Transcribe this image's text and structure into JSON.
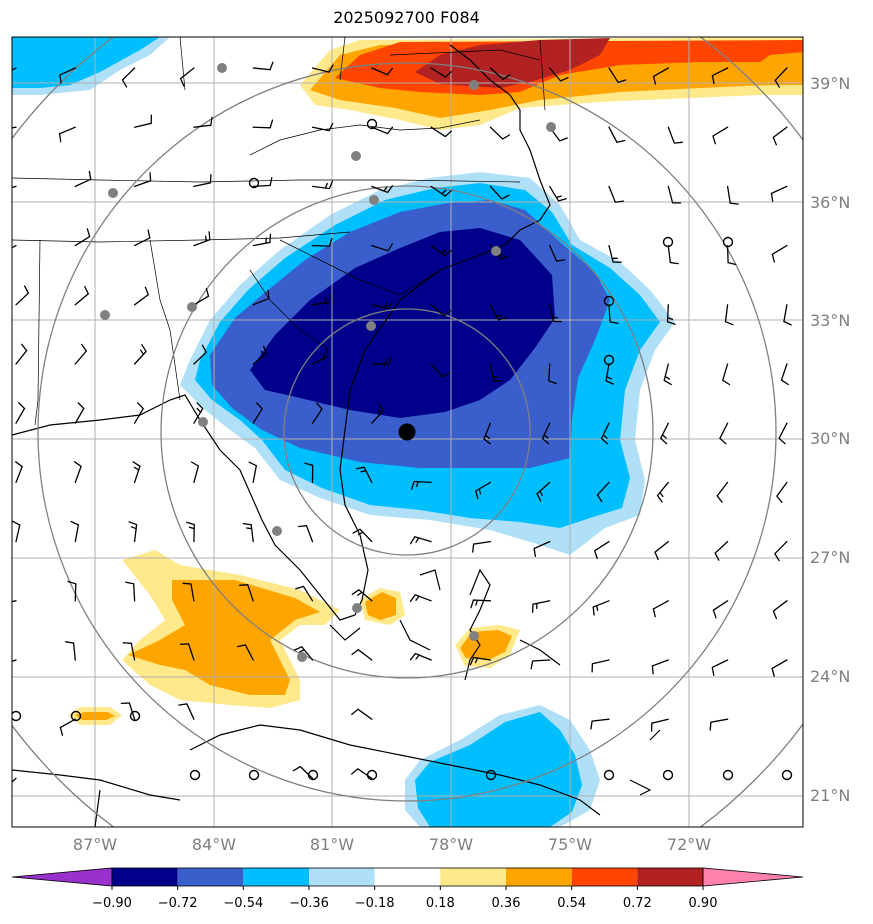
{
  "title": "2025092700 F084",
  "map": {
    "lon_range": [
      -89,
      -69
    ],
    "lat_range": [
      20,
      40
    ],
    "center": {
      "lon": -79.1,
      "lat": 30.2
    },
    "lat_labels": [
      "21°N",
      "24°N",
      "27°N",
      "30°N",
      "33°N",
      "36°N",
      "39°N"
    ],
    "lon_labels": [
      "87°W",
      "84°W",
      "81°W",
      "78°W",
      "75°W",
      "72°W"
    ],
    "lat_values": [
      21,
      24,
      27,
      30,
      33,
      36,
      39
    ],
    "lon_values": [
      -87,
      -84,
      -81,
      -78,
      -75,
      -72
    ]
  },
  "colorbar": {
    "levels": [
      "−0.90",
      "−0.72",
      "−0.54",
      "−0.36",
      "−0.18",
      "0.18",
      "0.36",
      "0.54",
      "0.72",
      "0.90"
    ],
    "colors": [
      "#9932cc",
      "#00008b",
      "#3a5fcd",
      "#00bfff",
      "#b0e0f8",
      "#ffffff",
      "#ffe98a",
      "#ffa500",
      "#ff4500",
      "#b22222",
      "#ff82ab"
    ]
  },
  "colors": {
    "coast": "#000000",
    "grid": "#b0b0b0",
    "rings": "#808080",
    "stations": "#808080",
    "center_marker": "#000000"
  }
}
